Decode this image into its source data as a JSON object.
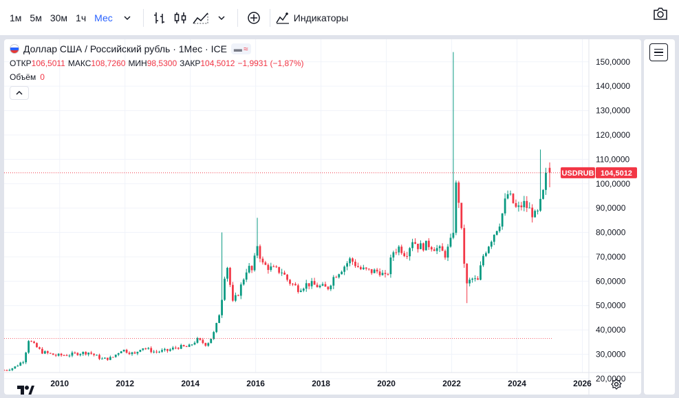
{
  "toolbar": {
    "intervals": [
      "1м",
      "5м",
      "30м",
      "1ч",
      "Мес"
    ],
    "active_interval": "Мес",
    "indicators_label": "Индикаторы"
  },
  "legend": {
    "title": "Доллар США / Российский рубль · 1Мес · ICE",
    "open_label": "ОТКР",
    "open_value": "106,5011",
    "high_label": "МАКС",
    "high_value": "108,7260",
    "low_label": "МИН",
    "low_value": "98,5300",
    "close_label": "ЗАКР",
    "close_value": "104,5012",
    "change": "−1,9931 (−1,87%)",
    "volume_label": "Объём",
    "volume_value": "0"
  },
  "price_tag": {
    "symbol": "USDRUB",
    "value": "104,5012",
    "color": "#f23645"
  },
  "colors": {
    "up": "#089981",
    "down": "#f23645",
    "grid": "#f0f3fa"
  },
  "chart_data": {
    "type": "candlestick",
    "title": "Доллар США / Российский рубль · 1Мес · ICE",
    "y_ticks": [
      "20,0000",
      "30,0000",
      "40,0000",
      "50,0000",
      "60,0000",
      "70,0000",
      "80,0000",
      "90,0000",
      "100,0000",
      "110,0000",
      "120,0000",
      "130,0000",
      "140,0000",
      "150,0000"
    ],
    "x_ticks": [
      "2010",
      "2012",
      "2014",
      "2016",
      "2018",
      "2020",
      "2022",
      "2024",
      "2026"
    ],
    "ylim": [
      18,
      157
    ],
    "xlim": [
      2008.3,
      2026.2
    ],
    "last_close": 104.5012,
    "previous_close_line": 36.5,
    "anchors": [
      [
        2008.3,
        23.5
      ],
      [
        2008.6,
        24.5
      ],
      [
        2008.9,
        27.5
      ],
      [
        2009.05,
        36.0
      ],
      [
        2009.2,
        34.0
      ],
      [
        2009.45,
        31.0
      ],
      [
        2009.9,
        29.5
      ],
      [
        2010.3,
        29.8
      ],
      [
        2010.6,
        30.5
      ],
      [
        2010.9,
        30.8
      ],
      [
        2011.3,
        28.0
      ],
      [
        2011.6,
        28.5
      ],
      [
        2011.9,
        32.0
      ],
      [
        2012.3,
        30.0
      ],
      [
        2012.5,
        33.0
      ],
      [
        2012.9,
        31.0
      ],
      [
        2013.3,
        31.5
      ],
      [
        2013.6,
        33.0
      ],
      [
        2013.95,
        33.0
      ],
      [
        2014.2,
        36.0
      ],
      [
        2014.5,
        34.0
      ],
      [
        2014.7,
        38.0
      ],
      [
        2014.85,
        44.0
      ],
      [
        2015.0,
        56.0
      ],
      [
        2015.1,
        69.0
      ],
      [
        2015.3,
        51.0
      ],
      [
        2015.5,
        56.0
      ],
      [
        2015.75,
        66.0
      ],
      [
        2015.9,
        64.0
      ],
      [
        2016.05,
        75.0
      ],
      [
        2016.2,
        67.0
      ],
      [
        2016.5,
        65.0
      ],
      [
        2016.8,
        64.0
      ],
      [
        2017.0,
        60.0
      ],
      [
        2017.3,
        57.0
      ],
      [
        2017.6,
        59.0
      ],
      [
        2017.9,
        58.0
      ],
      [
        2018.2,
        57.0
      ],
      [
        2018.4,
        62.0
      ],
      [
        2018.7,
        66.0
      ],
      [
        2018.9,
        69.0
      ],
      [
        2019.2,
        65.0
      ],
      [
        2019.5,
        64.0
      ],
      [
        2019.8,
        64.0
      ],
      [
        2020.0,
        61.0
      ],
      [
        2020.2,
        72.0
      ],
      [
        2020.4,
        74.0
      ],
      [
        2020.6,
        71.0
      ],
      [
        2020.8,
        77.0
      ],
      [
        2021.0,
        74.0
      ],
      [
        2021.3,
        75.0
      ],
      [
        2021.6,
        73.0
      ],
      [
        2021.8,
        71.0
      ],
      [
        2021.95,
        75.0
      ],
      [
        2022.08,
        83.0
      ],
      [
        2022.15,
        104.0
      ],
      [
        2022.3,
        80.0
      ],
      [
        2022.45,
        58.0
      ],
      [
        2022.6,
        61.0
      ],
      [
        2022.8,
        60.0
      ],
      [
        2022.95,
        70.0
      ],
      [
        2023.2,
        77.0
      ],
      [
        2023.5,
        85.0
      ],
      [
        2023.7,
        96.0
      ],
      [
        2023.85,
        93.0
      ],
      [
        2024.0,
        89.0
      ],
      [
        2024.2,
        92.0
      ],
      [
        2024.4,
        89.0
      ],
      [
        2024.6,
        86.0
      ],
      [
        2024.8,
        96.0
      ],
      [
        2024.9,
        104.0
      ],
      [
        2025.0,
        104.5
      ]
    ]
  }
}
